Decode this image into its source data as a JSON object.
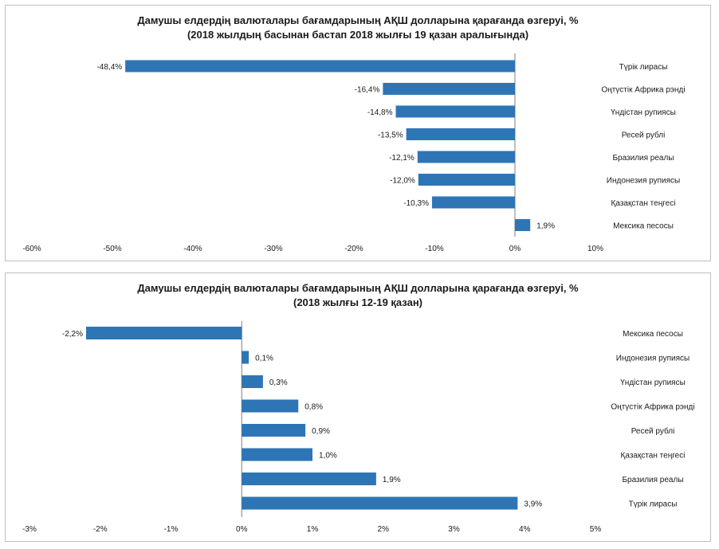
{
  "chart_data": [
    {
      "type": "bar",
      "orientation": "horizontal",
      "title": "Дамушы елдердің  валюталары бағамдарының АҚШ долларына қарағанда өзгеруі, %",
      "subtitle": "(2018 жылдың басынан бастап 2018 жылғы 19 қазан  аралығында)",
      "categories": [
        "Түрік лирасы",
        "Оңтүстік Африка рэнді",
        "Үндістан рупиясы",
        "Ресей рублі",
        "Бразилия реалы",
        "Индонезия рупиясы",
        "Қазақстан теңгесі",
        "Мексика песосы"
      ],
      "values": [
        -48.4,
        -16.4,
        -14.8,
        -13.5,
        -12.1,
        -12.0,
        -10.3,
        1.9
      ],
      "value_labels": [
        "-48,4%",
        "-16,4%",
        "-14,8%",
        "-13,5%",
        "-12,1%",
        "-12,0%",
        "-10,3%",
        "1,9%"
      ],
      "xlim": [
        -60,
        10
      ],
      "ticks": [
        -60,
        -50,
        -40,
        -30,
        -20,
        -10,
        0,
        10
      ],
      "tick_labels": [
        "-60%",
        "-50%",
        "-40%",
        "-30%",
        "-20%",
        "-10%",
        "0%",
        "10%"
      ],
      "grid": false,
      "bar_color": "#2e75b6"
    },
    {
      "type": "bar",
      "orientation": "horizontal",
      "title": "Дамушы елдердің  валюталары бағамдарының АҚШ долларына қарағанда өзгеруі, %",
      "subtitle": "(2018 жылғы 12-19 қазан)",
      "categories": [
        "Мексика песосы",
        "Индонезия рупиясы",
        "Үндістан рупиясы",
        "Оңтүстік Африка рэнді",
        "Ресей рублі",
        "Қазақстан теңгесі",
        "Бразилия реалы",
        "Түрік лирасы"
      ],
      "values": [
        -2.2,
        0.1,
        0.3,
        0.8,
        0.9,
        1.0,
        1.9,
        3.9
      ],
      "value_labels": [
        "-2,2%",
        "0,1%",
        "0,3%",
        "0,8%",
        "0,9%",
        "1,0%",
        "1,9%",
        "3,9%"
      ],
      "xlim": [
        -3,
        5
      ],
      "ticks": [
        -3,
        -2,
        -1,
        0,
        1,
        2,
        3,
        4,
        5
      ],
      "tick_labels": [
        "-3%",
        "-2%",
        "-1%",
        "0%",
        "1%",
        "2%",
        "3%",
        "4%",
        "5%"
      ],
      "grid": false,
      "bar_color": "#2e75b6"
    }
  ]
}
